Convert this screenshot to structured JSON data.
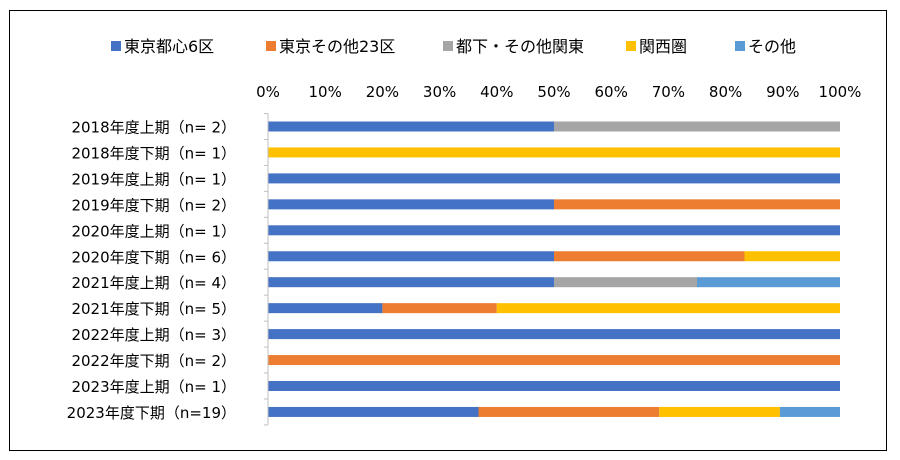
{
  "chart_data": {
    "type": "bar",
    "orientation": "horizontal",
    "stacked": "percent",
    "categories": [
      "2018年度上期（n=  2）",
      "2018年度下期（n=  1）",
      "2019年度上期（n=  1）",
      "2019年度下期（n=  2）",
      "2020年度上期（n=  1）",
      "2020年度下期（n=  6）",
      "2021年度上期（n=  4）",
      "2021年度下期（n=  5）",
      "2022年度上期（n=  3）",
      "2022年度下期（n=  2）",
      "2023年度上期（n=  1）",
      "2023年度下期（n=19）"
    ],
    "series": [
      {
        "name": "東京都心6区",
        "color": "#4472C4",
        "values": [
          50,
          0,
          100,
          50,
          100,
          50,
          50,
          20,
          100,
          0,
          100,
          36.8
        ]
      },
      {
        "name": "東京その他23区",
        "color": "#ED7D31",
        "values": [
          0,
          0,
          0,
          50,
          0,
          33.3,
          0,
          20,
          0,
          100,
          0,
          31.6
        ]
      },
      {
        "name": "都下・その他関東",
        "color": "#A5A5A5",
        "values": [
          50,
          0,
          0,
          0,
          0,
          0,
          25,
          0,
          0,
          0,
          0,
          0
        ]
      },
      {
        "name": "関西圏",
        "color": "#FFC000",
        "values": [
          0,
          100,
          0,
          0,
          0,
          16.7,
          0,
          60,
          0,
          0,
          0,
          21.1
        ]
      },
      {
        "name": "その他",
        "color": "#5B9BD5",
        "values": [
          0,
          0,
          0,
          0,
          0,
          0,
          25,
          0,
          0,
          0,
          0,
          10.5
        ]
      }
    ],
    "x_ticks": [
      "0%",
      "10%",
      "20%",
      "30%",
      "40%",
      "50%",
      "60%",
      "70%",
      "80%",
      "90%",
      "100%"
    ],
    "xlim": [
      0,
      100
    ],
    "grid": false,
    "legend_position": "top"
  }
}
